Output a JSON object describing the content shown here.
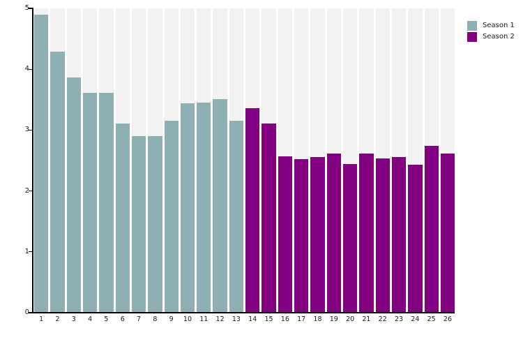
{
  "chart_data": {
    "type": "bar",
    "title": "",
    "xlabel": "",
    "ylabel": "",
    "categories": [
      "1",
      "2",
      "3",
      "4",
      "5",
      "6",
      "7",
      "8",
      "9",
      "10",
      "11",
      "12",
      "13",
      "14",
      "15",
      "16",
      "17",
      "18",
      "19",
      "20",
      "21",
      "22",
      "23",
      "24",
      "25",
      "26"
    ],
    "series": [
      {
        "name": "Season 1",
        "color": "#8FB0B3",
        "values": [
          4.9,
          4.29,
          3.87,
          3.61,
          3.61,
          3.11,
          2.9,
          2.9,
          3.15,
          3.44,
          3.45,
          3.51,
          3.15
        ]
      },
      {
        "name": "Season 2",
        "color": "#800080",
        "values": [
          3.36,
          3.11,
          2.57,
          2.52,
          2.56,
          2.61,
          2.44,
          2.62,
          2.53,
          2.56,
          2.43,
          2.74,
          2.62
        ]
      }
    ],
    "ylim": [
      0,
      5
    ],
    "yticks": [
      0,
      1,
      2,
      3,
      4,
      5
    ],
    "grid": false,
    "legend_position": "top-right",
    "plot_backdrop_column_color": "#F2F2F2",
    "axis_color": "#000000"
  },
  "legend": {
    "items": [
      {
        "label": "Season 1",
        "color": "#8FB0B3"
      },
      {
        "label": "Season 2",
        "color": "#800080"
      }
    ]
  }
}
